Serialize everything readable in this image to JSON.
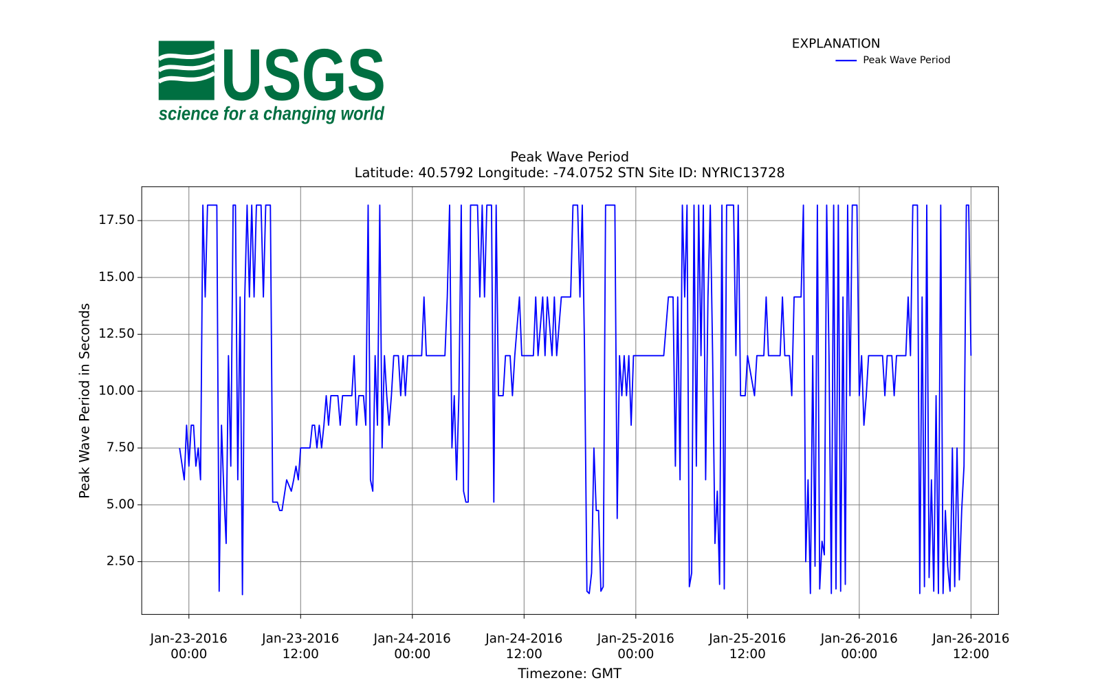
{
  "chart_data": {
    "type": "line",
    "logo": {
      "text": "USGS",
      "tagline": "science for a changing world"
    },
    "title": "Peak Wave Period",
    "subtitle": "Latitude: 40.5792 Longitude: -74.0752 STN Site ID: NYRIC13728",
    "xlabel": "Timezone: GMT",
    "ylabel": "Peak Wave Period in Seconds",
    "legend_title": "EXPLANATION",
    "legend_loc": "upper right",
    "grid": true,
    "xlim": [
      "2016-01-22 18:56",
      "2016-01-26 14:57"
    ],
    "xticks": [
      {
        "value": "2016-01-23 00:00",
        "label": [
          "Jan-23-2016",
          "00:00"
        ]
      },
      {
        "value": "2016-01-23 12:00",
        "label": [
          "Jan-23-2016",
          "12:00"
        ]
      },
      {
        "value": "2016-01-24 00:00",
        "label": [
          "Jan-24-2016",
          "00:00"
        ]
      },
      {
        "value": "2016-01-24 12:00",
        "label": [
          "Jan-24-2016",
          "12:00"
        ]
      },
      {
        "value": "2016-01-25 00:00",
        "label": [
          "Jan-25-2016",
          "00:00"
        ]
      },
      {
        "value": "2016-01-25 12:00",
        "label": [
          "Jan-25-2016",
          "12:00"
        ]
      },
      {
        "value": "2016-01-26 00:00",
        "label": [
          "Jan-26-2016",
          "00:00"
        ]
      },
      {
        "value": "2016-01-26 12:00",
        "label": [
          "Jan-26-2016",
          "12:00"
        ]
      }
    ],
    "ylim": [
      0.18,
      18.99
    ],
    "yticks": [
      {
        "value": 2.5,
        "label": "2.50"
      },
      {
        "value": 5,
        "label": "5.00"
      },
      {
        "value": 7.5,
        "label": "7.50"
      },
      {
        "value": 10,
        "label": "10.00"
      },
      {
        "value": 12.5,
        "label": "12.50"
      },
      {
        "value": 15,
        "label": "15.00"
      },
      {
        "value": 17.5,
        "label": "17.50"
      }
    ],
    "x": [
      "2016-01-22 23:00",
      "2016-01-22 23:30",
      "2016-01-22 23:45",
      "2016-01-23 00:00",
      "2016-01-23 00:15",
      "2016-01-23 00:30",
      "2016-01-23 00:45",
      "2016-01-23 01:00",
      "2016-01-23 01:15",
      "2016-01-23 01:30",
      "2016-01-23 01:45",
      "2016-01-23 02:00",
      "2016-01-23 03:00",
      "2016-01-23 03:15",
      "2016-01-23 03:30",
      "2016-01-23 03:45",
      "2016-01-23 04:00",
      "2016-01-23 04:15",
      "2016-01-23 04:30",
      "2016-01-23 04:45",
      "2016-01-23 05:00",
      "2016-01-23 05:15",
      "2016-01-23 05:30",
      "2016-01-23 05:45",
      "2016-01-23 06:00",
      "2016-01-23 06:15",
      "2016-01-23 06:30",
      "2016-01-23 06:45",
      "2016-01-23 07:00",
      "2016-01-23 07:15",
      "2016-01-23 07:45",
      "2016-01-23 08:00",
      "2016-01-23 08:15",
      "2016-01-23 08:45",
      "2016-01-23 09:00",
      "2016-01-23 09:30",
      "2016-01-23 09:45",
      "2016-01-23 10:00",
      "2016-01-23 10:30",
      "2016-01-23 11:00",
      "2016-01-23 11:15",
      "2016-01-23 11:30",
      "2016-01-23 11:45",
      "2016-01-23 12:00",
      "2016-01-23 13:00",
      "2016-01-23 13:15",
      "2016-01-23 13:30",
      "2016-01-23 13:45",
      "2016-01-23 14:00",
      "2016-01-23 14:15",
      "2016-01-23 14:30",
      "2016-01-23 14:45",
      "2016-01-23 15:00",
      "2016-01-23 15:15",
      "2016-01-23 16:00",
      "2016-01-23 16:15",
      "2016-01-23 16:30",
      "2016-01-23 17:30",
      "2016-01-23 17:45",
      "2016-01-23 18:00",
      "2016-01-23 18:15",
      "2016-01-23 18:45",
      "2016-01-23 19:00",
      "2016-01-23 19:15",
      "2016-01-23 19:30",
      "2016-01-23 19:45",
      "2016-01-23 20:00",
      "2016-01-23 20:15",
      "2016-01-23 20:30",
      "2016-01-23 20:45",
      "2016-01-23 21:00",
      "2016-01-23 21:15",
      "2016-01-23 21:30",
      "2016-01-23 21:45",
      "2016-01-23 22:00",
      "2016-01-23 22:30",
      "2016-01-23 22:45",
      "2016-01-23 23:00",
      "2016-01-23 23:15",
      "2016-01-23 23:30",
      "2016-01-24 01:00",
      "2016-01-24 01:15",
      "2016-01-24 01:30",
      "2016-01-24 03:30",
      "2016-01-24 03:45",
      "2016-01-24 04:00",
      "2016-01-24 04:15",
      "2016-01-24 04:30",
      "2016-01-24 04:45",
      "2016-01-24 05:00",
      "2016-01-24 05:15",
      "2016-01-24 05:30",
      "2016-01-24 05:45",
      "2016-01-24 06:00",
      "2016-01-24 06:15",
      "2016-01-24 07:00",
      "2016-01-24 07:15",
      "2016-01-24 07:30",
      "2016-01-24 07:45",
      "2016-01-24 08:00",
      "2016-01-24 08:30",
      "2016-01-24 08:45",
      "2016-01-24 09:00",
      "2016-01-24 09:15",
      "2016-01-24 09:45",
      "2016-01-24 10:00",
      "2016-01-24 10:30",
      "2016-01-24 10:45",
      "2016-01-24 11:00",
      "2016-01-24 11:30",
      "2016-01-24 11:45",
      "2016-01-24 13:00",
      "2016-01-24 13:15",
      "2016-01-24 13:30",
      "2016-01-24 14:00",
      "2016-01-24 14:15",
      "2016-01-24 14:30",
      "2016-01-24 15:00",
      "2016-01-24 15:15",
      "2016-01-24 15:30",
      "2016-01-24 16:00",
      "2016-01-24 17:00",
      "2016-01-24 17:15",
      "2016-01-24 17:45",
      "2016-01-24 18:00",
      "2016-01-24 18:15",
      "2016-01-24 18:30",
      "2016-01-24 18:45",
      "2016-01-24 19:00",
      "2016-01-24 19:15",
      "2016-01-24 19:30",
      "2016-01-24 19:45",
      "2016-01-24 20:00",
      "2016-01-24 20:15",
      "2016-01-24 20:30",
      "2016-01-24 20:45",
      "2016-01-24 21:45",
      "2016-01-24 22:00",
      "2016-01-24 22:15",
      "2016-01-24 22:30",
      "2016-01-24 22:45",
      "2016-01-24 23:00",
      "2016-01-24 23:15",
      "2016-01-24 23:30",
      "2016-01-24 23:45",
      "2016-01-25 03:00",
      "2016-01-25 03:30",
      "2016-01-25 04:00",
      "2016-01-25 04:15",
      "2016-01-25 04:30",
      "2016-01-25 04:45",
      "2016-01-25 05:00",
      "2016-01-25 05:15",
      "2016-01-25 05:30",
      "2016-01-25 05:45",
      "2016-01-25 06:00",
      "2016-01-25 06:15",
      "2016-01-25 06:30",
      "2016-01-25 06:45",
      "2016-01-25 07:00",
      "2016-01-25 07:15",
      "2016-01-25 07:30",
      "2016-01-25 07:45",
      "2016-01-25 08:00",
      "2016-01-25 08:15",
      "2016-01-25 08:30",
      "2016-01-25 08:45",
      "2016-01-25 09:00",
      "2016-01-25 09:15",
      "2016-01-25 09:30",
      "2016-01-25 09:45",
      "2016-01-25 10:30",
      "2016-01-25 10:45",
      "2016-01-25 11:00",
      "2016-01-25 11:15",
      "2016-01-25 11:45",
      "2016-01-25 12:00",
      "2016-01-25 12:45",
      "2016-01-25 13:00",
      "2016-01-25 13:45",
      "2016-01-25 14:00",
      "2016-01-25 14:15",
      "2016-01-25 15:30",
      "2016-01-25 15:45",
      "2016-01-25 16:00",
      "2016-01-25 16:30",
      "2016-01-25 16:45",
      "2016-01-25 17:00",
      "2016-01-25 17:45",
      "2016-01-25 18:00",
      "2016-01-25 18:15",
      "2016-01-25 18:30",
      "2016-01-25 18:45",
      "2016-01-25 19:00",
      "2016-01-25 19:15",
      "2016-01-25 19:30",
      "2016-01-25 19:45",
      "2016-01-25 20:00",
      "2016-01-25 20:15",
      "2016-01-25 20:30",
      "2016-01-25 20:45",
      "2016-01-25 21:00",
      "2016-01-25 21:15",
      "2016-01-25 21:30",
      "2016-01-25 21:45",
      "2016-01-25 22:00",
      "2016-01-25 22:15",
      "2016-01-25 22:30",
      "2016-01-25 22:45",
      "2016-01-25 23:00",
      "2016-01-25 23:15",
      "2016-01-25 23:45",
      "2016-01-26 00:00",
      "2016-01-26 00:15",
      "2016-01-26 00:30",
      "2016-01-26 00:45",
      "2016-01-26 01:00",
      "2016-01-26 02:30",
      "2016-01-26 02:45",
      "2016-01-26 03:00",
      "2016-01-26 03:30",
      "2016-01-26 03:45",
      "2016-01-26 04:00",
      "2016-01-26 05:00",
      "2016-01-26 05:15",
      "2016-01-26 05:30",
      "2016-01-26 05:45",
      "2016-01-26 06:15",
      "2016-01-26 06:30",
      "2016-01-26 06:45",
      "2016-01-26 07:00",
      "2016-01-26 07:15",
      "2016-01-26 07:30",
      "2016-01-26 07:45",
      "2016-01-26 08:00",
      "2016-01-26 08:15",
      "2016-01-26 08:30",
      "2016-01-26 08:45",
      "2016-01-26 09:00",
      "2016-01-26 09:15",
      "2016-01-26 09:30",
      "2016-01-26 09:45",
      "2016-01-26 10:00",
      "2016-01-26 10:15",
      "2016-01-26 10:30",
      "2016-01-26 10:45",
      "2016-01-26 11:00",
      "2016-01-26 11:15",
      "2016-01-26 11:30",
      "2016-01-26 11:45",
      "2016-01-26 12:00"
    ],
    "series": [
      {
        "name": "Peak Wave Period",
        "color": "#0000ff",
        "values": [
          7.5,
          6.1,
          8.5,
          6.7,
          8.5,
          8.5,
          6.7,
          7.5,
          6.1,
          18.18,
          14.14,
          18.18,
          18.18,
          1.2,
          8.5,
          5.6,
          3.3,
          11.56,
          6.7,
          18.18,
          18.18,
          6.1,
          14.14,
          1.05,
          14.14,
          18.18,
          14.14,
          18.18,
          14.14,
          18.18,
          18.18,
          14.14,
          18.18,
          18.18,
          5.12,
          5.12,
          4.75,
          4.75,
          6.1,
          5.6,
          6.1,
          6.7,
          6.1,
          7.5,
          7.5,
          8.5,
          8.5,
          7.5,
          8.5,
          7.5,
          8.5,
          9.8,
          8.5,
          9.8,
          9.8,
          8.5,
          9.8,
          9.8,
          11.56,
          8.5,
          9.8,
          9.8,
          8.5,
          18.18,
          6.1,
          5.6,
          11.56,
          8.5,
          18.18,
          7.5,
          11.56,
          9.8,
          8.5,
          9.8,
          11.56,
          11.56,
          9.8,
          11.56,
          9.8,
          11.56,
          11.56,
          14.14,
          11.56,
          11.56,
          14.14,
          18.18,
          7.5,
          9.8,
          6.1,
          9.8,
          18.18,
          5.6,
          5.12,
          5.12,
          18.18,
          18.18,
          14.14,
          18.18,
          14.14,
          18.18,
          18.18,
          5.12,
          18.18,
          9.8,
          9.8,
          11.56,
          11.56,
          9.8,
          11.56,
          14.14,
          11.56,
          11.56,
          14.14,
          11.56,
          14.14,
          11.56,
          14.14,
          11.56,
          14.14,
          11.56,
          14.14,
          14.14,
          18.18,
          18.18,
          14.14,
          18.18,
          11.56,
          1.2,
          1.1,
          2.0,
          7.5,
          4.75,
          4.75,
          1.2,
          1.4,
          18.18,
          18.18,
          4.4,
          11.56,
          9.8,
          11.56,
          9.8,
          11.56,
          8.5,
          11.56,
          11.56,
          14.14,
          14.14,
          6.7,
          14.14,
          6.1,
          18.18,
          14.14,
          18.18,
          1.4,
          2.0,
          18.18,
          6.7,
          18.18,
          11.56,
          18.18,
          6.1,
          14.14,
          18.18,
          11.56,
          3.3,
          5.6,
          1.5,
          18.18,
          1.3,
          18.18,
          18.18,
          11.56,
          18.18,
          9.8,
          9.8,
          11.56,
          9.8,
          11.56,
          11.56,
          14.14,
          11.56,
          11.56,
          14.14,
          11.56,
          11.56,
          9.8,
          14.14,
          14.14,
          18.18,
          2.5,
          6.1,
          1.1,
          11.56,
          2.3,
          18.18,
          1.3,
          3.4,
          2.8,
          18.18,
          11.56,
          1.1,
          18.18,
          1.3,
          18.18,
          1.2,
          14.14,
          1.5,
          18.18,
          9.8,
          18.18,
          18.18,
          9.8,
          11.56,
          8.5,
          9.8,
          11.56,
          11.56,
          9.8,
          11.56,
          11.56,
          9.8,
          11.56,
          11.56,
          14.14,
          11.56,
          18.18,
          18.18,
          1.1,
          14.14,
          1.4,
          18.18,
          1.8,
          6.1,
          1.2,
          9.8,
          1.1,
          18.18,
          1.1,
          4.75,
          2.3,
          1.2,
          7.5,
          1.4,
          7.5,
          1.7,
          4.75,
          6.7,
          18.18,
          18.18,
          11.56
        ]
      }
    ]
  }
}
